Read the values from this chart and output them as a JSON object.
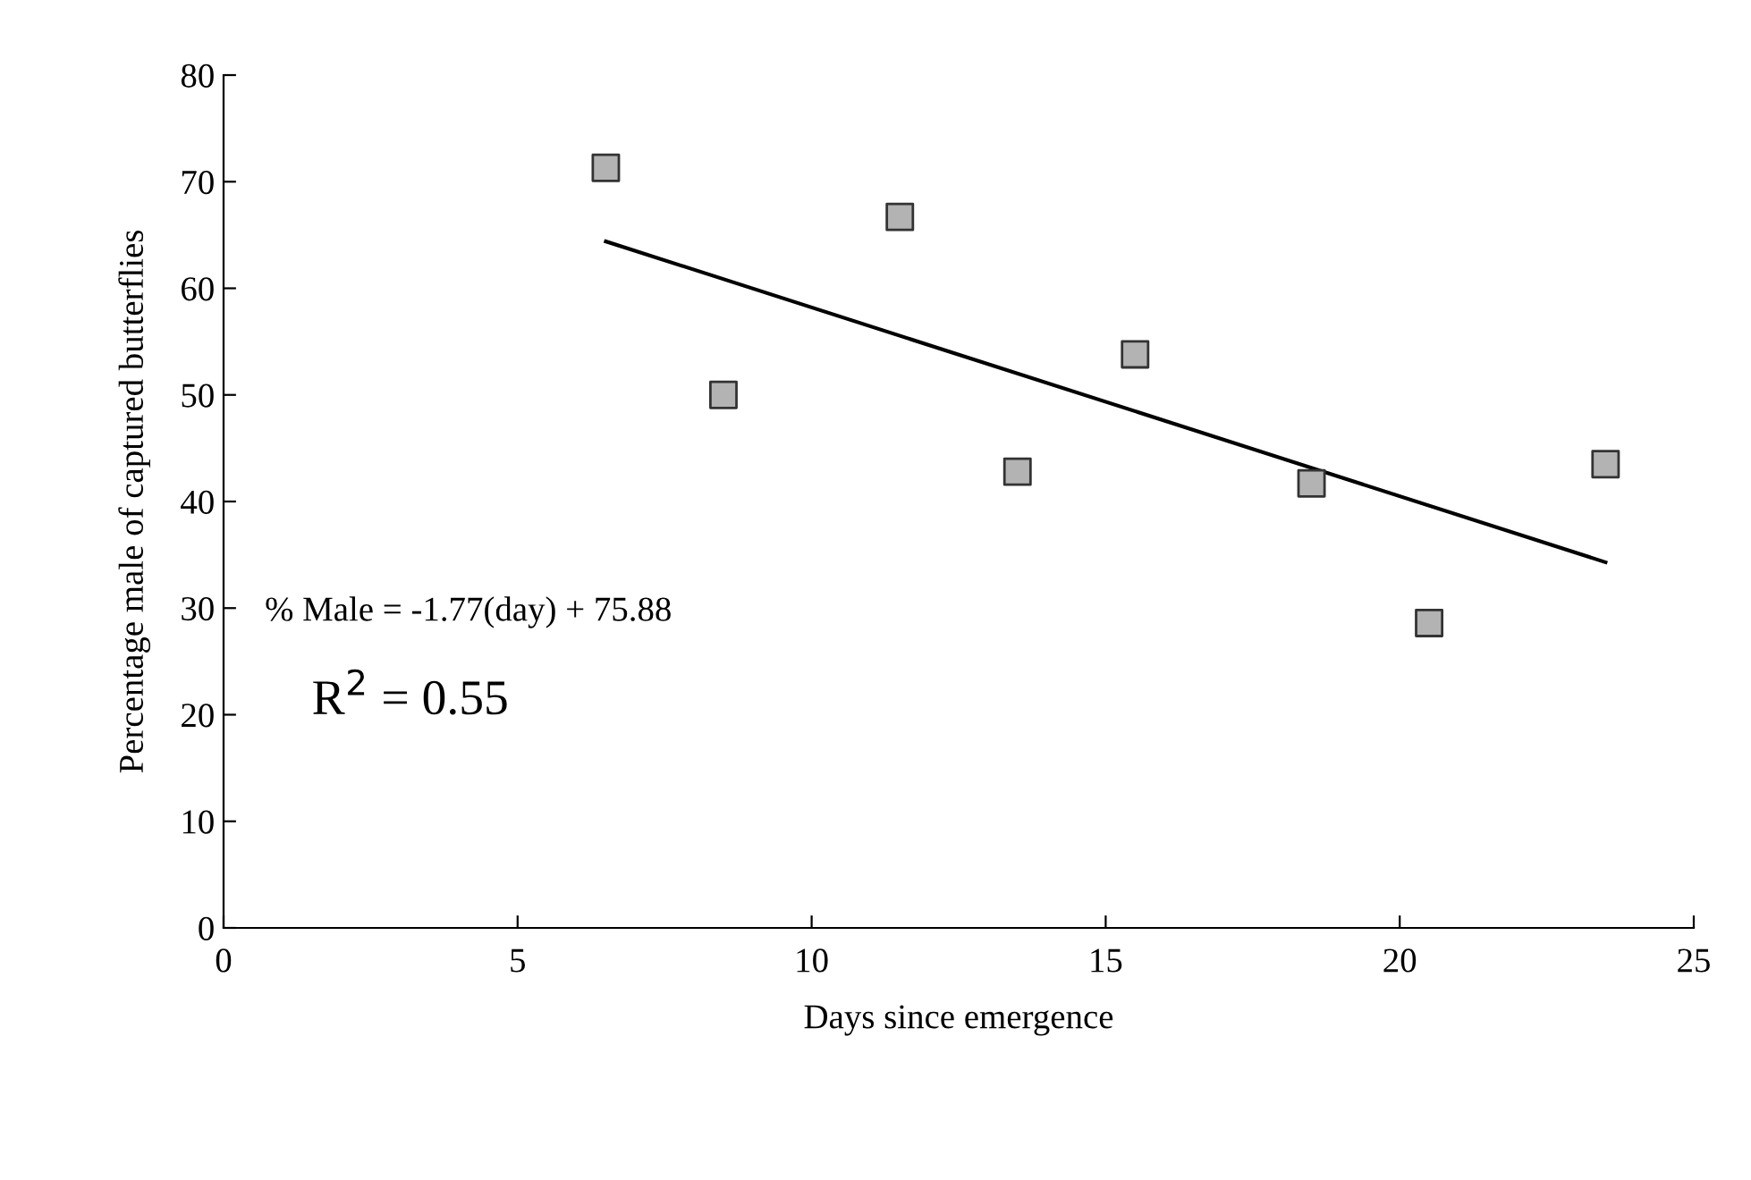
{
  "chart_data": {
    "type": "scatter",
    "xlabel": "Days since emergence",
    "ylabel": "Percentage male of captured butterflies",
    "xlim": [
      0,
      25
    ],
    "xticks": [
      0,
      5,
      10,
      15,
      20,
      25
    ],
    "ylim": [
      0,
      80
    ],
    "yticks": [
      0,
      10,
      20,
      30,
      40,
      50,
      60,
      70,
      80
    ],
    "grid": false,
    "series": [
      {
        "marker": "square",
        "color": "#b3b3b3",
        "x": [
          6.5,
          8.5,
          11.5,
          13.5,
          15.5,
          18.5,
          20.5,
          23.5
        ],
        "values": [
          71.3,
          50,
          66.7,
          42.8,
          53.8,
          41.7,
          28.6,
          43.5
        ]
      },
      {
        "type": "line",
        "marker": "none",
        "color": "#000000",
        "x": [
          6.5,
          23.5
        ],
        "values": [
          64.4,
          34.3
        ]
      }
    ],
    "annotations": [
      "% Male = -1.77(day) + 75.88",
      "R$^{2}$ = 0.55"
    ]
  }
}
